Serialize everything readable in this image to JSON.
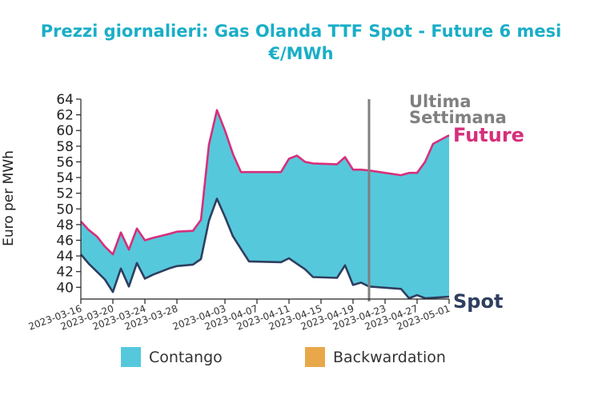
{
  "chart_data": {
    "type": "area",
    "title_line1": "Prezzi giornalieri: Gas Olanda TTF Spot - Future 6 mesi",
    "title_line2": "€/MWh",
    "ylabel": "Euro per MWh",
    "ylim": [
      38.5,
      64
    ],
    "yticks": [
      40,
      42,
      44,
      46,
      48,
      50,
      52,
      54,
      56,
      58,
      60,
      62,
      64
    ],
    "xlim": [
      "2023-03-16",
      "2023-05-01"
    ],
    "xticks": [
      "2023-03-16",
      "2023-03-20",
      "2023-03-24",
      "2023-03-28",
      "2023-04-03",
      "2023-04-07",
      "2023-04-11",
      "2023-04-15",
      "2023-04-19",
      "2023-04-23",
      "2023-04-27",
      "2023-05-01"
    ],
    "series": [
      {
        "name": "Future",
        "color": "#d62f7b",
        "points": [
          [
            "2023-03-16",
            48.4
          ],
          [
            "2023-03-17",
            47.3
          ],
          [
            "2023-03-18",
            46.5
          ],
          [
            "2023-03-19",
            45.2
          ],
          [
            "2023-03-20",
            44.2
          ],
          [
            "2023-03-21",
            47.0
          ],
          [
            "2023-03-22",
            44.8
          ],
          [
            "2023-03-23",
            47.5
          ],
          [
            "2023-03-24",
            46.0
          ],
          [
            "2023-03-25",
            46.3
          ],
          [
            "2023-03-27",
            46.8
          ],
          [
            "2023-03-28",
            47.1
          ],
          [
            "2023-03-30",
            47.2
          ],
          [
            "2023-03-31",
            48.6
          ],
          [
            "2023-04-01",
            58.2
          ],
          [
            "2023-04-02",
            62.6
          ],
          [
            "2023-04-03",
            60.0
          ],
          [
            "2023-04-04",
            57.0
          ],
          [
            "2023-04-05",
            54.7
          ],
          [
            "2023-04-10",
            54.7
          ],
          [
            "2023-04-11",
            56.4
          ],
          [
            "2023-04-12",
            56.8
          ],
          [
            "2023-04-13",
            56.0
          ],
          [
            "2023-04-14",
            55.8
          ],
          [
            "2023-04-17",
            55.7
          ],
          [
            "2023-04-18",
            56.6
          ],
          [
            "2023-04-19",
            55.0
          ],
          [
            "2023-04-20",
            55.0
          ],
          [
            "2023-04-21",
            54.9
          ],
          [
            "2023-04-25",
            54.3
          ],
          [
            "2023-04-26",
            54.6
          ],
          [
            "2023-04-27",
            54.6
          ],
          [
            "2023-04-28",
            56.0
          ],
          [
            "2023-04-29",
            58.3
          ],
          [
            "2023-05-01",
            59.4
          ]
        ]
      },
      {
        "name": "Spot",
        "color": "#2e3f5f",
        "points": [
          [
            "2023-03-16",
            44.2
          ],
          [
            "2023-03-17",
            43.0
          ],
          [
            "2023-03-18",
            42.0
          ],
          [
            "2023-03-19",
            41.0
          ],
          [
            "2023-03-20",
            39.4
          ],
          [
            "2023-03-21",
            42.4
          ],
          [
            "2023-03-22",
            40.1
          ],
          [
            "2023-03-23",
            43.1
          ],
          [
            "2023-03-24",
            41.1
          ],
          [
            "2023-03-25",
            41.6
          ],
          [
            "2023-03-27",
            42.4
          ],
          [
            "2023-03-28",
            42.7
          ],
          [
            "2023-03-30",
            42.9
          ],
          [
            "2023-03-31",
            43.6
          ],
          [
            "2023-04-01",
            48.5
          ],
          [
            "2023-04-02",
            51.3
          ],
          [
            "2023-04-03",
            49.0
          ],
          [
            "2023-04-04",
            46.5
          ],
          [
            "2023-04-05",
            44.9
          ],
          [
            "2023-04-06",
            43.3
          ],
          [
            "2023-04-10",
            43.2
          ],
          [
            "2023-04-11",
            43.7
          ],
          [
            "2023-04-12",
            43.0
          ],
          [
            "2023-04-13",
            42.3
          ],
          [
            "2023-04-14",
            41.3
          ],
          [
            "2023-04-17",
            41.2
          ],
          [
            "2023-04-18",
            42.8
          ],
          [
            "2023-04-19",
            40.3
          ],
          [
            "2023-04-20",
            40.6
          ],
          [
            "2023-04-21",
            40.1
          ],
          [
            "2023-04-25",
            39.8
          ],
          [
            "2023-04-26",
            38.6
          ],
          [
            "2023-04-27",
            39.0
          ],
          [
            "2023-04-28",
            38.6
          ],
          [
            "2023-05-01",
            38.8
          ]
        ]
      }
    ],
    "marker": {
      "date": "2023-04-21",
      "label_line1": "Ultima",
      "label_line2": "Settimana",
      "color": "#808080"
    },
    "legend": [
      {
        "label": "Contango",
        "color": "#56c8dc"
      },
      {
        "label": "Backwardation",
        "color": "#e8a84a"
      }
    ],
    "legend_placement": "bottom",
    "grid": false
  }
}
